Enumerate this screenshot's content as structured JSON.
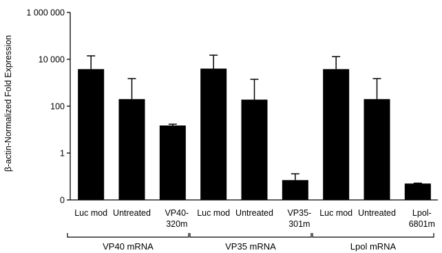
{
  "chart_data": {
    "type": "bar",
    "ylabel": "β-actin-Normalized Fold Expression",
    "yscale": "log",
    "ylim": [
      0.01,
      1000000
    ],
    "yticks": [
      {
        "value": 1000000,
        "label": "1 000 000"
      },
      {
        "value": 10000,
        "label": "10 000"
      },
      {
        "value": 100,
        "label": "100"
      },
      {
        "value": 1,
        "label": "1"
      },
      {
        "value": 0.01,
        "label": "0"
      }
    ],
    "bar_color": "#000000",
    "categories": [
      [
        "Luc mod"
      ],
      [
        "Untreated"
      ],
      [
        "VP40-",
        "320m"
      ],
      [
        "Luc mod"
      ],
      [
        "Untreated"
      ],
      [
        "VP35-",
        "301m"
      ],
      [
        "Luc mod"
      ],
      [
        "Untreated"
      ],
      [
        "Lpol-",
        "6801m"
      ]
    ],
    "values": [
      3800,
      200,
      15,
      4000,
      190,
      0.07,
      3800,
      200,
      0.05
    ],
    "error_upper": [
      14000,
      1500,
      17,
      15000,
      1400,
      0.13,
      13000,
      1500,
      0.052
    ],
    "groups": [
      {
        "label": "VP40 mRNA",
        "start": 0,
        "end": 2
      },
      {
        "label": "VP35 mRNA",
        "start": 3,
        "end": 5
      },
      {
        "label": "Lpol mRNA",
        "start": 6,
        "end": 8
      }
    ],
    "grid": false,
    "legend": "none"
  }
}
